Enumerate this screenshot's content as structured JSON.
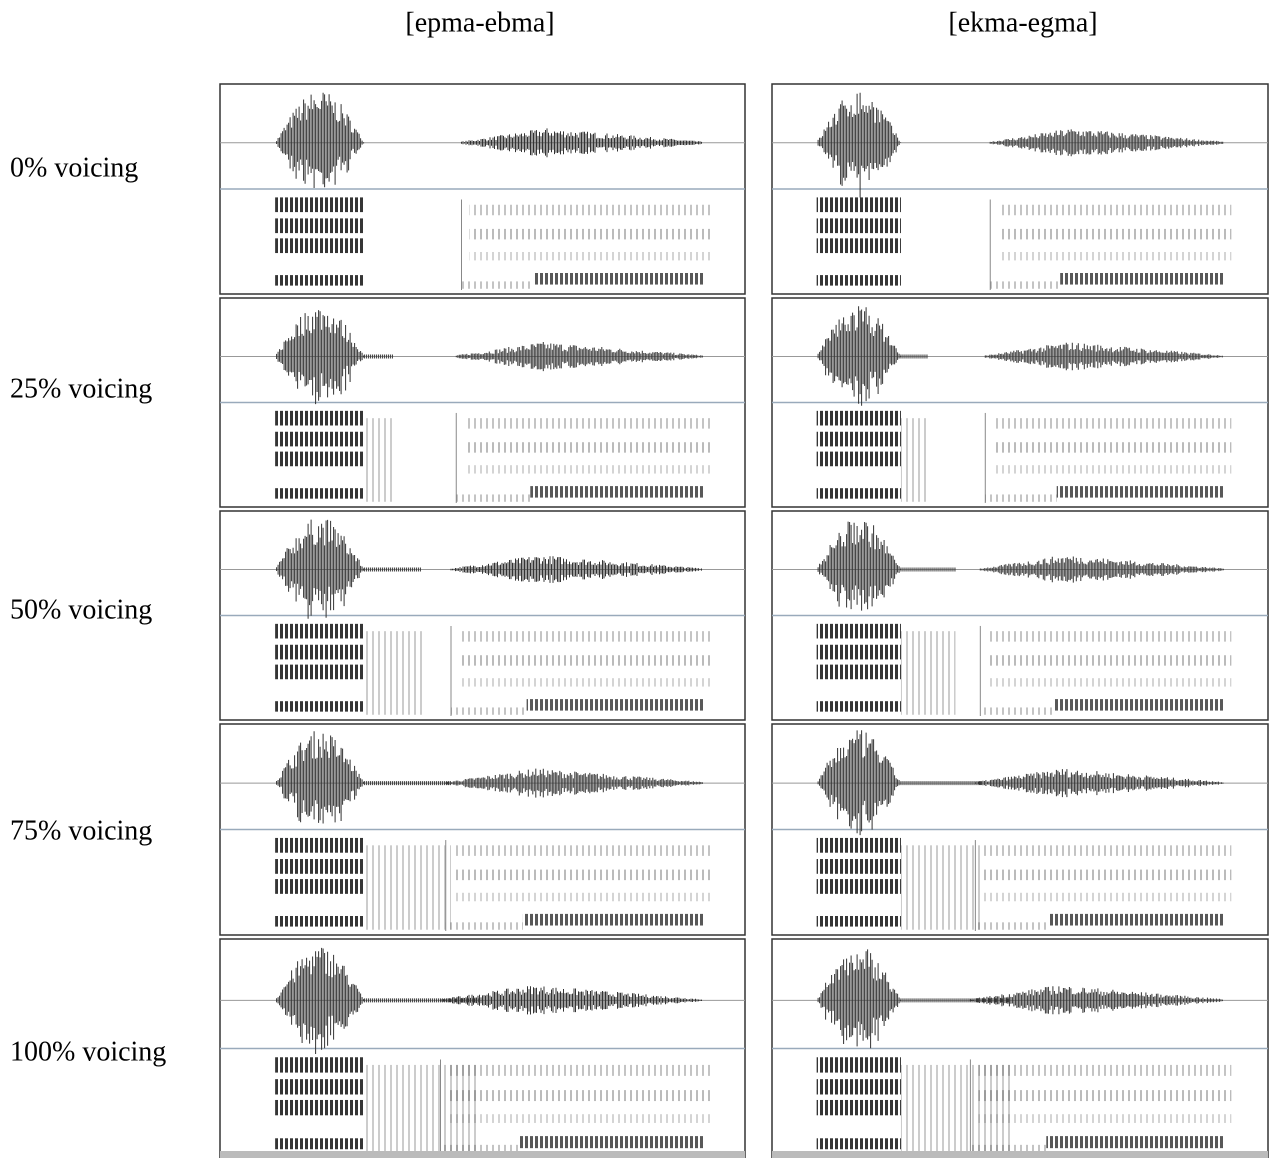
{
  "column_headers": [
    "[epma-ebma]",
    "[ekma-egma]"
  ],
  "row_labels": [
    "0% voicing",
    "25% voicing",
    "50% voicing",
    "75% voicing",
    "100% voicing"
  ]
}
